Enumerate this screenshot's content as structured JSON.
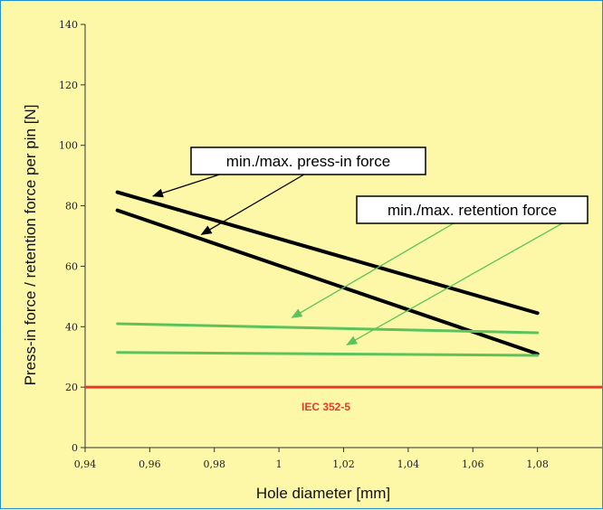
{
  "chart_data": {
    "type": "line",
    "xlabel": "Hole diameter [mm]",
    "ylabel": "Press-in force / retention force per pin [N]",
    "xlim": [
      0.94,
      1.1
    ],
    "ylim": [
      0,
      140
    ],
    "x_ticks": [
      "0,94",
      "0,96",
      "0,98",
      "1",
      "1,02",
      "1,04",
      "1,06",
      "1,08"
    ],
    "x_tick_values": [
      0.94,
      0.96,
      0.98,
      1.0,
      1.02,
      1.04,
      1.06,
      1.08
    ],
    "y_ticks": [
      "0",
      "20",
      "40",
      "60",
      "80",
      "100",
      "120",
      "140"
    ],
    "y_tick_values": [
      0,
      20,
      40,
      60,
      80,
      100,
      120,
      140
    ],
    "grid": false,
    "series": [
      {
        "color": "#000000",
        "x": [
          0.95,
          1.08
        ],
        "y": [
          84.5,
          44.5
        ]
      },
      {
        "color": "#000000",
        "x": [
          0.95,
          1.08
        ],
        "y": [
          78.5,
          31
        ]
      },
      {
        "color": "#5cc35c",
        "x": [
          0.95,
          1.08
        ],
        "y": [
          41,
          38
        ]
      },
      {
        "color": "#5cc35c",
        "x": [
          0.95,
          1.08
        ],
        "y": [
          31.5,
          30.5
        ]
      }
    ],
    "reference_line": {
      "label": "IEC 352-5",
      "y": 20,
      "color": "#e8392b"
    },
    "annotations": [
      {
        "text": "min./max. press-in force",
        "color": "#000000",
        "targets": [
          {
            "x": 0.961,
            "y": 83.2
          },
          {
            "x": 0.976,
            "y": 70.5
          }
        ]
      },
      {
        "text": "min./max. retention force",
        "color": "#5cc35c",
        "targets": [
          {
            "x": 1.004,
            "y": 43
          },
          {
            "x": 1.021,
            "y": 34
          }
        ]
      }
    ]
  }
}
